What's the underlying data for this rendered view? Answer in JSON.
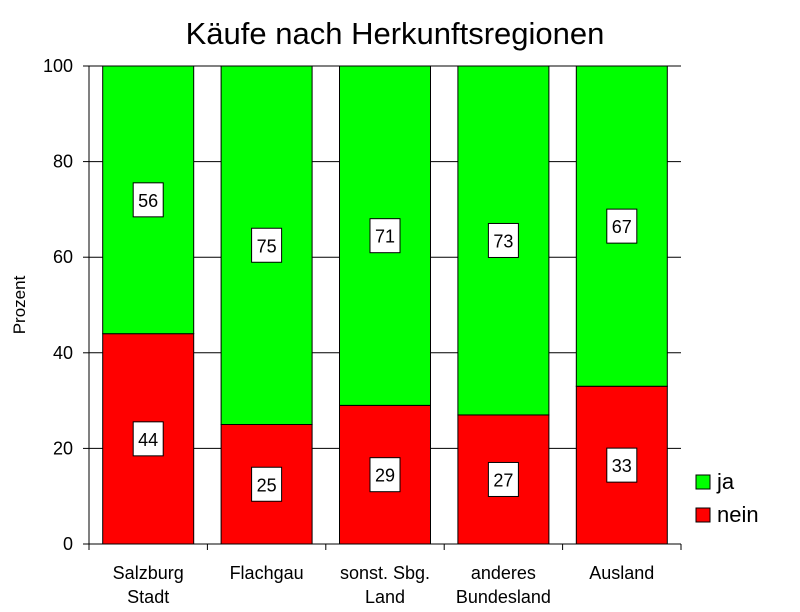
{
  "chart_data": {
    "type": "bar",
    "stacked": true,
    "title": "Käufe nach Herkunftsregionen",
    "ylabel": "Prozent",
    "xlabel": "",
    "ylim": [
      0,
      100
    ],
    "yticks": [
      0,
      20,
      40,
      60,
      80,
      100
    ],
    "ytick_labels": [
      "0",
      "20",
      "40",
      "60",
      "80",
      "100"
    ],
    "grid": true,
    "legend_position": "right",
    "categories": [
      [
        "Salzburg",
        "Stadt"
      ],
      [
        "Flachgau"
      ],
      [
        "sonst. Sbg.",
        "Land"
      ],
      [
        "anderes",
        "Bundesland"
      ],
      [
        "Ausland"
      ]
    ],
    "series": [
      {
        "name": "nein",
        "color": "#ff0000",
        "values": [
          44,
          25,
          29,
          27,
          33
        ],
        "labels": [
          "44",
          "25",
          "29",
          "27",
          "33"
        ]
      },
      {
        "name": "ja",
        "color": "#00ff00",
        "values": [
          56,
          75,
          71,
          73,
          67
        ],
        "labels": [
          "56",
          "75",
          "71",
          "73",
          "67"
        ]
      }
    ],
    "legend": [
      {
        "label": "ja",
        "color": "#00ff00"
      },
      {
        "label": "nein",
        "color": "#ff0000"
      }
    ]
  }
}
